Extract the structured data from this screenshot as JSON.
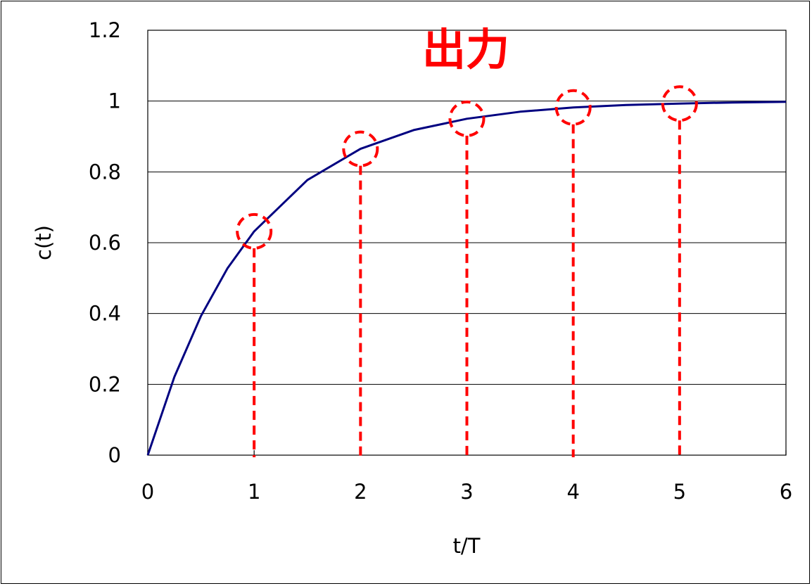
{
  "chart_data": {
    "type": "line",
    "title": "出力",
    "xlabel": "t/T",
    "ylabel": "c(t)",
    "xlim": [
      0,
      6
    ],
    "ylim": [
      0,
      1.2
    ],
    "x_ticks": [
      "0",
      "1",
      "2",
      "3",
      "4",
      "5",
      "6"
    ],
    "y_ticks": [
      "0",
      "0.2",
      "0.4",
      "0.6",
      "0.8",
      "1",
      "1.2"
    ],
    "grid": "horizontal",
    "legend": "none",
    "series": [
      {
        "color": "#000080",
        "x": [
          0,
          0.25,
          0.5,
          0.75,
          1,
          1.5,
          2,
          2.5,
          3,
          3.5,
          4,
          4.5,
          5,
          5.5,
          6
        ],
        "y": [
          0,
          0.221,
          0.393,
          0.528,
          0.632,
          0.777,
          0.865,
          0.918,
          0.95,
          0.97,
          0.982,
          0.989,
          0.993,
          0.996,
          0.998
        ]
      }
    ],
    "annotations": [
      {
        "x": 1,
        "y": 0.632,
        "color": "#ff0000"
      },
      {
        "x": 2,
        "y": 0.865,
        "color": "#ff0000"
      },
      {
        "x": 3,
        "y": 0.95,
        "color": "#ff0000"
      },
      {
        "x": 4,
        "y": 0.982,
        "color": "#ff0000"
      },
      {
        "x": 5,
        "y": 0.993,
        "color": "#ff0000"
      }
    ]
  }
}
